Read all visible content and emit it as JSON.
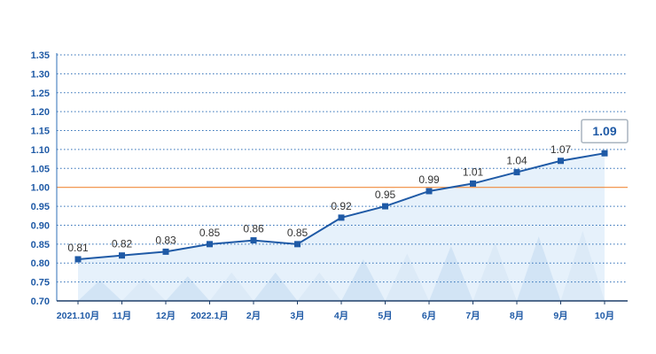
{
  "chart_data": {
    "type": "line",
    "categories": [
      "2021.10月",
      "11月",
      "12月",
      "2022.1月",
      "2月",
      "3月",
      "4月",
      "5月",
      "6月",
      "7月",
      "8月",
      "9月",
      "10月"
    ],
    "values": [
      0.81,
      0.82,
      0.83,
      0.85,
      0.86,
      0.85,
      0.92,
      0.95,
      0.99,
      1.01,
      1.04,
      1.07,
      1.09
    ],
    "value_labels": [
      "0.81",
      "0.82",
      "0.83",
      "0.85",
      "0.86",
      "0.85",
      "0.92",
      "0.95",
      "0.99",
      "1.01",
      "1.04",
      "1.07",
      "1.09"
    ],
    "yticks": [
      "0.70",
      "0.75",
      "0.80",
      "0.85",
      "0.90",
      "0.95",
      "1.00",
      "1.05",
      "1.10",
      "1.15",
      "1.20",
      "1.25",
      "1.30",
      "1.35"
    ],
    "ylim": [
      0.7,
      1.35
    ],
    "reference_line": 1.0,
    "grid": "horizontal-dotted",
    "colors": {
      "line": "#1f5aa6",
      "marker": "#1f5aa6",
      "reference": "#f08a3c",
      "grid": "#2f6fb7",
      "axis_text": "#1f5aa6",
      "area_light": "#e6f1fb",
      "area_dark": "#d2e4f5",
      "highlight_border": "#a9b4bf"
    }
  }
}
